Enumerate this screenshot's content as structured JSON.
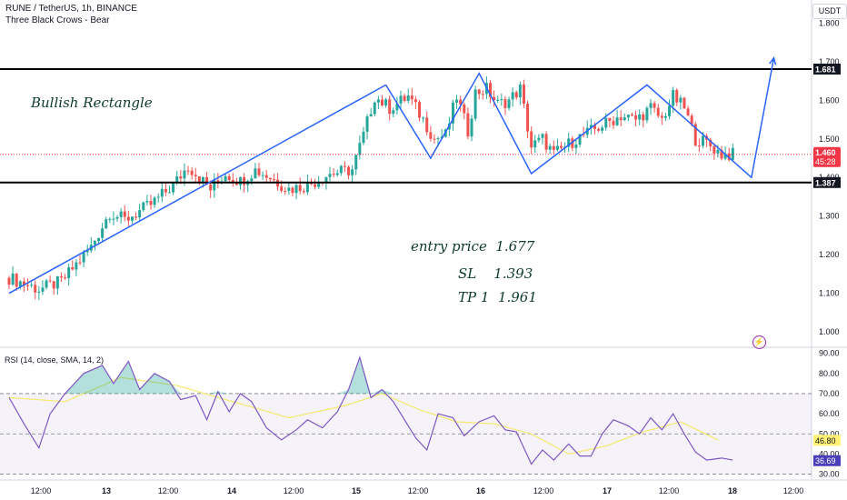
{
  "header": {
    "symbol_line": "RUNE / TetherUS, 1h, BINANCE",
    "pattern_line": "Three Black Crows - Bear",
    "currency": "USDT"
  },
  "annotations": {
    "pattern_name": "Bullish Rectangle",
    "entry": "entry price  1.677",
    "sl": "SL    1.393",
    "tp": "TP 1  1.961"
  },
  "rsi_label": "RSI (14, close, SMA, 14, 2)",
  "colors": {
    "up": "#26a69a",
    "down": "#ef5350",
    "trendline": "#2962ff",
    "rsi_line": "#7e57c2",
    "rsi_ma": "#f5e96b",
    "price_badge": "#f23645",
    "rsi_badge": "#4a3fb8",
    "ma_badge": "#fff176"
  },
  "chart_data": [
    {
      "type": "candlestick",
      "title": "RUNE / TetherUS, 1h, BINANCE",
      "x_ticks": [
        "12:00",
        "13",
        "12:00",
        "14",
        "12:00",
        "15",
        "12:00",
        "16",
        "12:00",
        "17",
        "12:00",
        "18",
        "12:00"
      ],
      "y_ticks": [
        "1.800",
        "1.700",
        "1.600",
        "1.500",
        "1.400",
        "1.300",
        "1.200",
        "1.100",
        "1.000"
      ],
      "ylim": [
        0.96,
        1.86
      ],
      "horizontal_levels": [
        {
          "price": 1.681,
          "label": "1.681"
        },
        {
          "price": 1.387,
          "label": "1.387"
        }
      ],
      "last_price": {
        "price": 1.46,
        "label": "1.460",
        "countdown": "45:28"
      },
      "close_path": [
        [
          0,
          1.14
        ],
        [
          8,
          1.11
        ],
        [
          14,
          1.13
        ],
        [
          22,
          1.22
        ],
        [
          27,
          1.31
        ],
        [
          31,
          1.29
        ],
        [
          38,
          1.33
        ],
        [
          44,
          1.38
        ],
        [
          48,
          1.43
        ],
        [
          51,
          1.4
        ],
        [
          54,
          1.37
        ],
        [
          58,
          1.41
        ],
        [
          62,
          1.39
        ],
        [
          66,
          1.42
        ],
        [
          70,
          1.4
        ],
        [
          75,
          1.37
        ],
        [
          80,
          1.38
        ],
        [
          86,
          1.41
        ],
        [
          92,
          1.42
        ],
        [
          95,
          1.51
        ],
        [
          98,
          1.61
        ],
        [
          102,
          1.58
        ],
        [
          107,
          1.61
        ],
        [
          111,
          1.55
        ],
        [
          114,
          1.5
        ],
        [
          117,
          1.51
        ],
        [
          120,
          1.61
        ],
        [
          123,
          1.52
        ],
        [
          125,
          1.62
        ],
        [
          128,
          1.63
        ],
        [
          131,
          1.59
        ],
        [
          134,
          1.6
        ],
        [
          137,
          1.63
        ],
        [
          140,
          1.48
        ],
        [
          143,
          1.5
        ],
        [
          146,
          1.46
        ],
        [
          149,
          1.48
        ],
        [
          152,
          1.5
        ],
        [
          156,
          1.52
        ],
        [
          160,
          1.54
        ],
        [
          164,
          1.56
        ],
        [
          168,
          1.55
        ],
        [
          172,
          1.58
        ],
        [
          175,
          1.55
        ],
        [
          178,
          1.61
        ],
        [
          181,
          1.58
        ],
        [
          184,
          1.5
        ],
        [
          187,
          1.49
        ],
        [
          191,
          1.46
        ],
        [
          194,
          1.46
        ]
      ],
      "trendlines": [
        [
          [
            0,
            1.1
          ],
          [
            101,
            1.64
          ]
        ],
        [
          [
            101,
            1.64
          ],
          [
            113,
            1.45
          ],
          [
            126,
            1.67
          ],
          [
            140,
            1.41
          ],
          [
            171,
            1.64
          ],
          [
            199,
            1.4
          ],
          [
            205,
            1.71
          ]
        ]
      ]
    },
    {
      "type": "line",
      "title": "RSI (14, close, SMA, 14, 2)",
      "y_ticks": [
        "90.00",
        "80.00",
        "70.00",
        "60.00",
        "50.00",
        "40.00",
        "30.00"
      ],
      "ylim": [
        28,
        93
      ],
      "bands": [
        70,
        50,
        30
      ],
      "last_rsi": {
        "value": 36.69,
        "label": "36.69"
      },
      "last_ma": {
        "value": 46.8,
        "label": "46.80"
      },
      "rsi_path": [
        [
          0,
          68
        ],
        [
          4,
          55
        ],
        [
          8,
          43
        ],
        [
          11,
          60
        ],
        [
          15,
          70
        ],
        [
          20,
          80
        ],
        [
          25,
          84
        ],
        [
          28,
          75
        ],
        [
          32,
          86
        ],
        [
          35,
          72
        ],
        [
          39,
          80
        ],
        [
          43,
          76
        ],
        [
          46,
          67
        ],
        [
          50,
          69
        ],
        [
          53,
          57
        ],
        [
          56,
          71
        ],
        [
          59,
          61
        ],
        [
          62,
          70
        ],
        [
          65,
          66
        ],
        [
          69,
          53
        ],
        [
          73,
          47
        ],
        [
          77,
          52
        ],
        [
          80,
          57
        ],
        [
          84,
          53
        ],
        [
          88,
          61
        ],
        [
          91,
          72
        ],
        [
          94,
          88
        ],
        [
          97,
          68
        ],
        [
          100,
          72
        ],
        [
          103,
          66
        ],
        [
          106,
          57
        ],
        [
          109,
          48
        ],
        [
          112,
          42
        ],
        [
          115,
          60
        ],
        [
          119,
          58
        ],
        [
          122,
          49
        ],
        [
          126,
          56
        ],
        [
          130,
          59
        ],
        [
          133,
          52
        ],
        [
          136,
          51
        ],
        [
          140,
          35
        ],
        [
          143,
          42
        ],
        [
          146,
          37
        ],
        [
          150,
          45
        ],
        [
          153,
          39
        ],
        [
          156,
          39
        ],
        [
          159,
          50
        ],
        [
          162,
          57
        ],
        [
          166,
          54
        ],
        [
          169,
          50
        ],
        [
          172,
          58
        ],
        [
          175,
          52
        ],
        [
          178,
          60
        ],
        [
          181,
          50
        ],
        [
          184,
          41
        ],
        [
          187,
          37
        ],
        [
          191,
          38
        ],
        [
          194,
          37
        ]
      ],
      "ma_path": [
        [
          0,
          68
        ],
        [
          15,
          66
        ],
        [
          30,
          78
        ],
        [
          45,
          74
        ],
        [
          60,
          66
        ],
        [
          75,
          58
        ],
        [
          90,
          64
        ],
        [
          100,
          70
        ],
        [
          110,
          62
        ],
        [
          120,
          56
        ],
        [
          130,
          55
        ],
        [
          140,
          50
        ],
        [
          150,
          40
        ],
        [
          160,
          44
        ],
        [
          170,
          51
        ],
        [
          180,
          56
        ],
        [
          190,
          47
        ]
      ]
    }
  ]
}
